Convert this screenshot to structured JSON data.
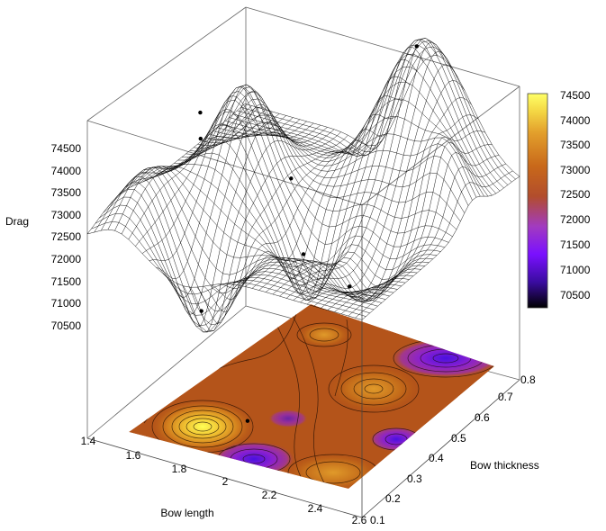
{
  "chart_data": {
    "type": "surface3d",
    "title": "",
    "xlabel": "Bow length",
    "ylabel": "Bow thickness",
    "zlabel": "Drag",
    "x_range": [
      1.4,
      2.6
    ],
    "y_range": [
      0.1,
      0.8
    ],
    "z_range": [
      70000,
      74500
    ],
    "x_ticks": [
      "1.4",
      "1.6",
      "1.8",
      "2",
      "2.2",
      "2.4",
      "2.6"
    ],
    "y_ticks": [
      "0.1",
      "0.2",
      "0.3",
      "0.4",
      "0.5",
      "0.6",
      "0.7",
      "0.8"
    ],
    "z_ticks": [
      "70500",
      "71000",
      "71500",
      "72000",
      "72500",
      "73000",
      "73500",
      "74000",
      "74500"
    ],
    "colorbar": {
      "ticks": [
        "70500",
        "71000",
        "71500",
        "72000",
        "72500",
        "73000",
        "73500",
        "74000",
        "74500"
      ],
      "range": [
        70000,
        74500
      ],
      "colors": [
        "#000000",
        "#3a0ca0",
        "#7a10ff",
        "#a23bc0",
        "#b24d2c",
        "#c8681a",
        "#e3a02c",
        "#f4d845",
        "#ffff66"
      ]
    },
    "surface": "mesh",
    "floor_plot": "filled contour map with contour lines",
    "grid": false,
    "data_points": [
      {
        "x": 1.5,
        "y": 0.5,
        "z": 73600
      },
      {
        "x": 1.6,
        "y": 0.4,
        "z": 73600
      },
      {
        "x": 1.7,
        "y": 0.7,
        "z": 72300
      },
      {
        "x": 1.8,
        "y": 0.2,
        "z": 71900
      },
      {
        "x": 2.0,
        "y": 0.45,
        "z": 72200
      },
      {
        "x": 2.1,
        "y": 0.1,
        "z": 70900
      },
      {
        "x": 2.3,
        "y": 0.35,
        "z": 72300
      },
      {
        "x": 2.2,
        "y": 0.75,
        "z": 74500
      }
    ]
  }
}
